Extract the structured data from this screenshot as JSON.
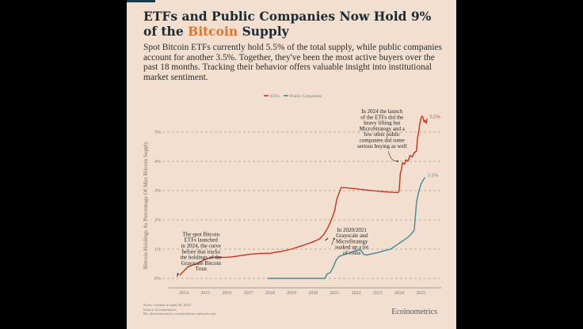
{
  "header": {
    "title_part1": "ETFs and Public Companies Now Hold 9%",
    "title_part2_pre": "of the ",
    "title_highlight": "Bitcoin",
    "title_part2_post": " Supply",
    "subtitle": "Spot Bitcoin ETFs currently hold 5.5% of the total supply, while public companies account for another 3.5%. Together, they've been the most active buyers over the past 18 months. Tracking their behavior offers valuable insight into institutional market sentiment."
  },
  "colors": {
    "background": "#f2dfcf",
    "etfs": "#c9321f",
    "public_companies": "#3f8a99",
    "highlight": "#e0742c",
    "grid": "#a89f98",
    "text": "#1c2a33"
  },
  "chart_data": {
    "type": "line",
    "title": "ETFs and Public Companies Now Hold 9% of the Bitcoin Supply",
    "xlabel": "",
    "ylabel": "Bitcoin Holdings As Percentage Of Max Bitcoin Supply",
    "xlim": [
      2013.4,
      2026.0
    ],
    "ylim": [
      -0.2,
      5.8
    ],
    "x_ticks": [
      "2014",
      "2015",
      "2016",
      "2017",
      "2018",
      "2019",
      "2020",
      "2021",
      "2022",
      "2023",
      "2024",
      "2025"
    ],
    "x_tick_values": [
      2014,
      2015,
      2016,
      2017,
      2018,
      2019,
      2020,
      2021,
      2022,
      2023,
      2024,
      2025
    ],
    "y_ticks": [
      "0%",
      "1%",
      "2%",
      "3%",
      "4%",
      "5%"
    ],
    "y_tick_values": [
      0,
      1,
      2,
      3,
      4,
      5
    ],
    "grid": "horizontal-dashed",
    "legend": {
      "placement": "top-center",
      "entries": [
        "ETFs",
        "Public Companies"
      ]
    },
    "series": [
      {
        "name": "ETFs",
        "end_label": "5.5%",
        "points": [
          [
            2013.8,
            0.1
          ],
          [
            2014.0,
            0.25
          ],
          [
            2014.2,
            0.4
          ],
          [
            2014.6,
            0.5
          ],
          [
            2015.0,
            0.65
          ],
          [
            2015.3,
            0.72
          ],
          [
            2016.0,
            0.72
          ],
          [
            2016.3,
            0.74
          ],
          [
            2017.0,
            0.82
          ],
          [
            2017.5,
            0.85
          ],
          [
            2018.0,
            0.86
          ],
          [
            2018.5,
            0.92
          ],
          [
            2019.0,
            1.0
          ],
          [
            2019.5,
            1.12
          ],
          [
            2020.0,
            1.25
          ],
          [
            2020.3,
            1.35
          ],
          [
            2020.5,
            1.5
          ],
          [
            2020.7,
            1.75
          ],
          [
            2020.85,
            2.0
          ],
          [
            2021.0,
            2.3
          ],
          [
            2021.1,
            2.7
          ],
          [
            2021.3,
            3.1
          ],
          [
            2021.5,
            3.1
          ],
          [
            2022.0,
            3.06
          ],
          [
            2022.5,
            3.02
          ],
          [
            2023.0,
            2.98
          ],
          [
            2023.5,
            2.95
          ],
          [
            2023.95,
            2.93
          ],
          [
            2024.0,
            3.0
          ],
          [
            2024.05,
            3.6
          ],
          [
            2024.1,
            3.7
          ],
          [
            2024.15,
            3.95
          ],
          [
            2024.25,
            3.9
          ],
          [
            2024.3,
            4.05
          ],
          [
            2024.4,
            4.0
          ],
          [
            2024.5,
            4.2
          ],
          [
            2024.6,
            4.15
          ],
          [
            2024.7,
            4.3
          ],
          [
            2024.8,
            4.35
          ],
          [
            2024.85,
            4.8
          ],
          [
            2024.9,
            5.0
          ],
          [
            2024.95,
            5.25
          ],
          [
            2025.0,
            5.45
          ],
          [
            2025.05,
            5.55
          ],
          [
            2025.1,
            5.5
          ],
          [
            2025.15,
            5.35
          ],
          [
            2025.2,
            5.4
          ],
          [
            2025.25,
            5.3
          ],
          [
            2025.3,
            5.45
          ]
        ]
      },
      {
        "name": "Public Companies",
        "end_label": "3.5%",
        "points": [
          [
            2017.9,
            0.0
          ],
          [
            2018.5,
            0.0
          ],
          [
            2019.0,
            0.0
          ],
          [
            2019.5,
            0.0
          ],
          [
            2020.0,
            0.0
          ],
          [
            2020.55,
            0.0
          ],
          [
            2020.65,
            0.15
          ],
          [
            2020.8,
            0.2
          ],
          [
            2020.95,
            0.4
          ],
          [
            2021.05,
            0.6
          ],
          [
            2021.2,
            0.75
          ],
          [
            2021.4,
            0.8
          ],
          [
            2021.6,
            0.85
          ],
          [
            2021.8,
            0.9
          ],
          [
            2022.0,
            0.95
          ],
          [
            2022.2,
            0.98
          ],
          [
            2022.35,
            0.82
          ],
          [
            2022.5,
            0.8
          ],
          [
            2022.8,
            0.85
          ],
          [
            2023.0,
            0.88
          ],
          [
            2023.3,
            0.95
          ],
          [
            2023.6,
            1.0
          ],
          [
            2023.8,
            1.1
          ],
          [
            2024.0,
            1.2
          ],
          [
            2024.2,
            1.3
          ],
          [
            2024.4,
            1.4
          ],
          [
            2024.6,
            1.55
          ],
          [
            2024.7,
            1.65
          ],
          [
            2024.8,
            2.6
          ],
          [
            2024.9,
            2.95
          ],
          [
            2025.0,
            3.2
          ],
          [
            2025.1,
            3.35
          ],
          [
            2025.2,
            3.45
          ]
        ]
      }
    ],
    "annotations": [
      {
        "text": [
          "The spot Bitcoin",
          "ETFs launched",
          "in 2024, the curve",
          "before that tracks",
          "the holdings of the",
          "Grayscale Bitcoin",
          "Trust"
        ],
        "anchor": [
          2013.8,
          0.1
        ],
        "text_pos": [
          2014.8,
          1.45
        ]
      },
      {
        "text": [
          "In 2020/2021",
          "Grayscale and",
          "MicroStrategy",
          "soaked up a lot",
          "of coins"
        ],
        "anchor": [
          2021.05,
          1.3
        ],
        "text_pos": [
          2021.8,
          1.6
        ]
      },
      {
        "text": [
          "In 2024 the launch",
          "of the ETFs did the",
          "heavy lifting but",
          "MicroStrategy and a",
          "few other public",
          "companies did some",
          "serious buying as well"
        ],
        "anchor": [
          2024.0,
          3.95
        ],
        "text_pos": [
          2023.2,
          5.65
        ]
      }
    ],
    "annotation_arrow": [
      2020.55,
      1.3
    ]
  },
  "footer": {
    "notes": "Notes: created on April 29, 2025",
    "source": "Source: Ecoinometrics",
    "by": "By: @ecoinometrics, ecoinometrics.substack.com",
    "brand": "Ecoinometrics"
  }
}
